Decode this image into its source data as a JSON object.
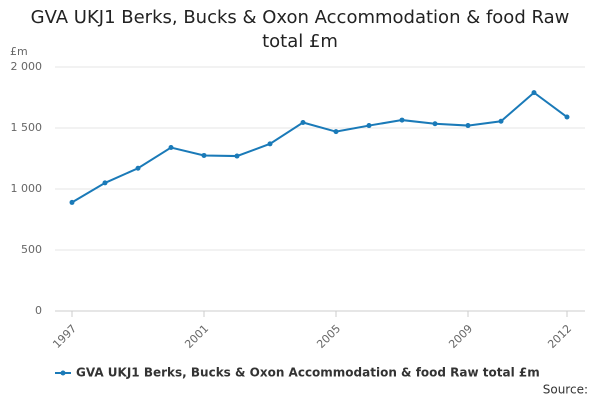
{
  "chart_data": {
    "type": "line",
    "title": "GVA UKJ1 Berks, Bucks & Oxon Accommodation & food Raw total £m",
    "y_unit": "£m",
    "x": [
      1997,
      1998,
      1999,
      2000,
      2001,
      2002,
      2003,
      2004,
      2005,
      2006,
      2007,
      2008,
      2009,
      2010,
      2011,
      2012
    ],
    "series": [
      {
        "name": "GVA UKJ1 Berks, Bucks & Oxon Accommodation & food Raw total £m",
        "color": "#1a7ab8",
        "values": [
          890,
          1050,
          1170,
          1340,
          1275,
          1270,
          1370,
          1545,
          1470,
          1520,
          1565,
          1535,
          1520,
          1555,
          1790,
          1590
        ]
      }
    ],
    "xlim": [
      1997,
      2012
    ],
    "xticks": [
      1997,
      2001,
      2005,
      2009,
      2012
    ],
    "ylim": [
      0,
      2000
    ],
    "yticks": [
      0,
      500,
      {
        "value": 1000,
        "label": "1 000"
      },
      {
        "value": 1500,
        "label": "1 500"
      },
      {
        "value": 2000,
        "label": "2 000"
      }
    ],
    "grid": true,
    "legend": "bottom",
    "source": "Source:"
  }
}
